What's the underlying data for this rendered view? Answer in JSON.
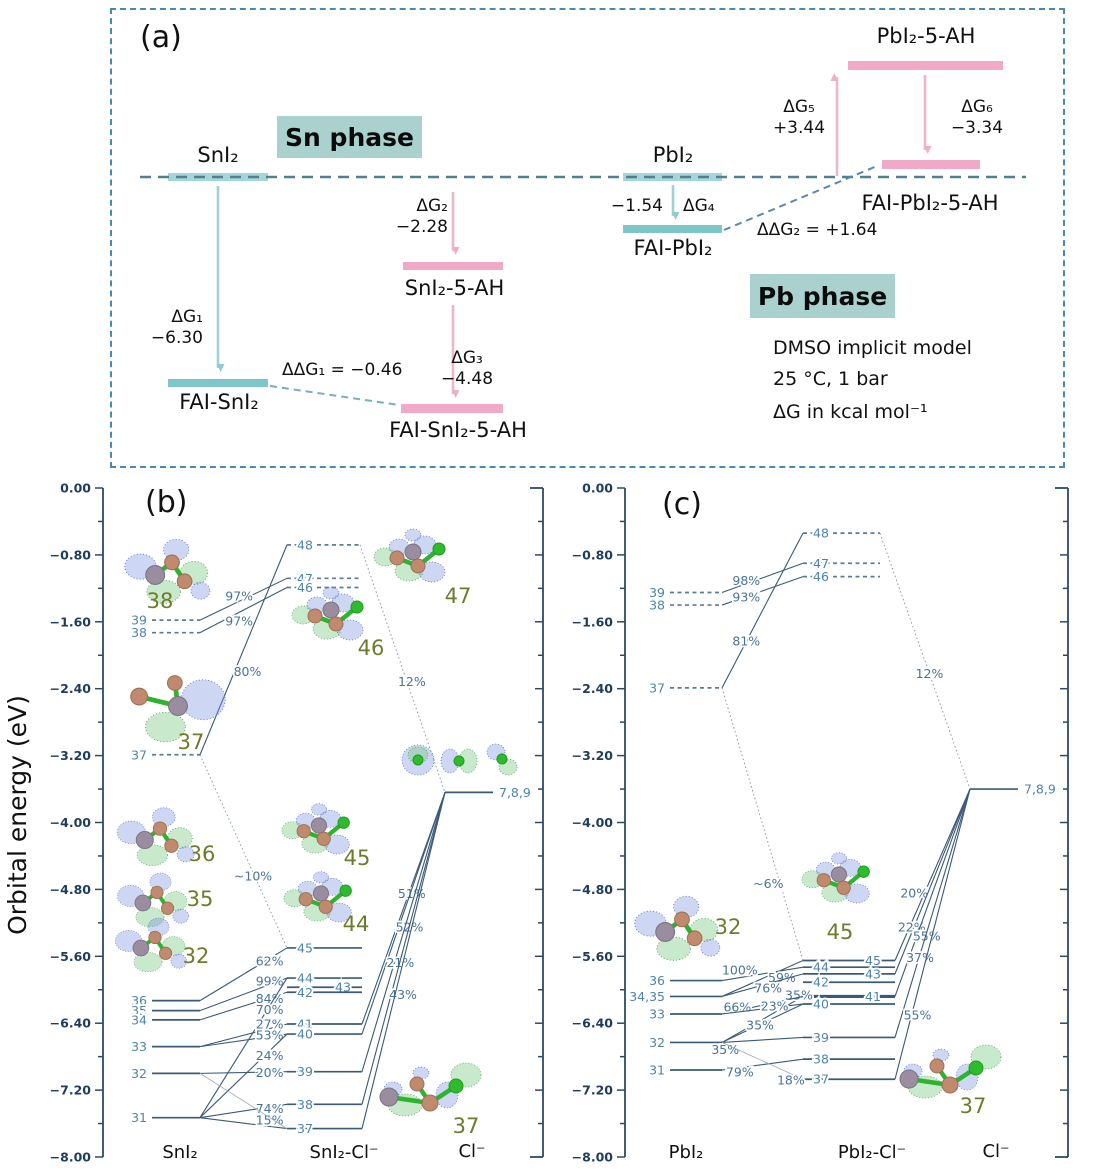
{
  "panel_a": {
    "tag": "(a)",
    "sn_phase": "Sn phase",
    "pb_phase": "Pb phase",
    "species": {
      "sni2": "SnI₂",
      "fai_sni2": "FAI-SnI₂",
      "sni2_5ah": "SnI₂-5-AH",
      "fai_sni2_5ah": "FAI-SnI₂-5-AH",
      "pbi2": "PbI₂",
      "fai_pbi2": "FAI-PbI₂",
      "pbi2_5ah": "PbI₂-5-AH",
      "fai_pbi2_5ah": "FAI-PbI₂-5-AH"
    },
    "steps": {
      "dg1": {
        "label": "ΔG₁",
        "value": "−6.30"
      },
      "dg2": {
        "label": "ΔG₂",
        "value": "−2.28"
      },
      "dg3": {
        "label": "ΔG₃",
        "value": "−4.48"
      },
      "dg4": {
        "label": "ΔG₄",
        "value": "−1.54"
      },
      "dg5": {
        "label": "ΔG₅",
        "value": "+3.44"
      },
      "dg6": {
        "label": "ΔG₆",
        "value": "−3.34"
      },
      "ddg1": "ΔΔG₁ = −0.46",
      "ddg2": "ΔΔG₂ = +1.64"
    },
    "conditions": [
      "DMSO implicit model",
      "25 °C, 1 bar",
      "ΔG in kcal mol⁻¹"
    ]
  },
  "chart_data": [
    {
      "type": "energy-level-diagram",
      "panel": "(b)",
      "ylabel": "Orbital energy (eV)",
      "ylim": [
        -8,
        0
      ],
      "yticks": [
        "0.00",
        "−0.80",
        "−1.60",
        "−2.40",
        "−3.20",
        "−4.00",
        "−4.80",
        "−5.60",
        "−6.40",
        "−7.20",
        "−8.00"
      ],
      "columns": [
        {
          "id": "SnI2",
          "label": "SnI₂",
          "levels": [
            {
              "n": "39",
              "e": -1.58,
              "dashed": true
            },
            {
              "n": "38",
              "e": -1.73,
              "dashed": true
            },
            {
              "n": "37",
              "e": -3.19,
              "dashed": true
            },
            {
              "n": "36",
              "e": -6.13
            },
            {
              "n": "35",
              "e": -6.25
            },
            {
              "n": "34",
              "e": -6.36
            },
            {
              "n": "33",
              "e": -6.68
            },
            {
              "n": "32",
              "e": -7.0
            },
            {
              "n": "31",
              "e": -7.53
            }
          ]
        },
        {
          "id": "SnI2Cl",
          "label": "SnI₂-Cl⁻",
          "levels": [
            {
              "n": "48",
              "e": -0.68,
              "dashed": true
            },
            {
              "n": "47",
              "e": -1.08,
              "dashed": true
            },
            {
              "n": "46",
              "e": -1.19,
              "dashed": true
            },
            {
              "n": "45",
              "e": -5.5
            },
            {
              "n": "44",
              "e": -5.86
            },
            {
              "n": "43",
              "e": -5.97,
              "ldx": 38
            },
            {
              "n": "42",
              "e": -6.03
            },
            {
              "n": "41",
              "e": -6.41
            },
            {
              "n": "40",
              "e": -6.53
            },
            {
              "n": "39",
              "e": -6.98
            },
            {
              "n": "38",
              "e": -7.37
            },
            {
              "n": "37",
              "e": -7.66
            }
          ]
        },
        {
          "id": "Cl",
          "label": "Cl⁻",
          "levels": [
            {
              "n": "7,8,9",
              "e": -3.64
            }
          ]
        }
      ],
      "connections": [
        {
          "from": "SnI2.39",
          "to": "SnI2Cl.47",
          "pct": "97%",
          "t": 0.45,
          "dy": -5
        },
        {
          "from": "SnI2.38",
          "to": "SnI2Cl.46",
          "pct": "97%",
          "t": 0.45,
          "dy": 9
        },
        {
          "from": "SnI2.37",
          "to": "SnI2Cl.48",
          "pct": "80%",
          "t": 0.5,
          "dy": 22,
          "dx": 4
        },
        {
          "from": "SnI2.37",
          "to": "SnI2Cl.45",
          "pct": "~10%",
          "t": 0.61,
          "dy": 4,
          "style": "dotted"
        },
        {
          "from": "SnI2Cl.48",
          "to": "Cl.7,8,9",
          "pct": "12%",
          "t": 0.61,
          "dy": -14,
          "style": "dotted"
        },
        {
          "from": "SnI2.36",
          "to": "SnI2Cl.45",
          "pct": "62%",
          "t": 0.8,
          "dy": 3
        },
        {
          "from": "SnI2.35",
          "to": "SnI2Cl.44",
          "pct": "99%",
          "t": 0.8,
          "dy": -3
        },
        {
          "from": "SnI2.34",
          "to": "SnI2Cl.42",
          "pct": "84%",
          "t": 0.8,
          "dy": 1
        },
        {
          "from": "SnI2.31",
          "to": "SnI2Cl.44",
          "pct": "70%",
          "t": 0.8,
          "dy": 4
        },
        {
          "from": "SnI2.33",
          "to": "SnI2Cl.41",
          "pct": "27%",
          "t": 0.8,
          "dy": -4
        },
        {
          "from": "SnI2.33",
          "to": "SnI2Cl.40",
          "pct": "53%",
          "t": 0.8,
          "dy": -1
        },
        {
          "from": "SnI2.31",
          "to": "SnI2Cl.40",
          "pct": "24%",
          "t": 0.8,
          "dy": 5
        },
        {
          "from": "SnI2.32",
          "to": "SnI2Cl.39",
          "pct": "20%",
          "t": 0.8,
          "dy": 1
        },
        {
          "from": "SnI2.31",
          "to": "SnI2Cl.38",
          "pct": "74%",
          "t": 0.8,
          "dy": 2
        },
        {
          "from": "SnI2.31",
          "to": "SnI2Cl.37",
          "pct": "15%",
          "t": 0.8,
          "dy": -6
        },
        {
          "from": "SnI2.32",
          "to": "SnI2Cl.37",
          "pct": "",
          "style": "faint"
        },
        {
          "from": "Cl.7,8,9",
          "to": "SnI2Cl.41",
          "pct": "51%",
          "t": 0.4,
          "dy": 9
        },
        {
          "from": "Cl.7,8,9",
          "to": "SnI2Cl.40",
          "pct": "52%",
          "t": 0.56,
          "dx": 11
        },
        {
          "from": "Cl.7,8,9",
          "to": "SnI2Cl.39",
          "pct": "21%",
          "t": 0.61,
          "dx": 6
        },
        {
          "from": "Cl.7,8,9",
          "to": "SnI2Cl.38",
          "pct": "43%",
          "t": 0.65,
          "dx": 12
        },
        {
          "from": "Cl.7,8,9",
          "to": "SnI2Cl.37",
          "pct": ""
        }
      ],
      "orbital_images": [
        {
          "id": "b38",
          "label": "38"
        },
        {
          "id": "b37",
          "label": "37"
        },
        {
          "id": "b36",
          "label": "36"
        },
        {
          "id": "b35",
          "label": "35"
        },
        {
          "id": "b32",
          "label": "32"
        },
        {
          "id": "b46",
          "label": "46"
        },
        {
          "id": "b47",
          "label": "47"
        },
        {
          "id": "b45",
          "label": "45"
        },
        {
          "id": "b44",
          "label": "44"
        },
        {
          "id": "bclrow",
          "label": ""
        },
        {
          "id": "b37c",
          "label": "37"
        }
      ]
    },
    {
      "type": "energy-level-diagram",
      "panel": "(c)",
      "ylabel": "",
      "ylim": [
        -8,
        0
      ],
      "yticks": [
        "0.00",
        "−0.80",
        "−1.60",
        "−2.40",
        "−3.20",
        "−4.00",
        "−4.80",
        "−5.60",
        "−6.40",
        "−7.20",
        "−8.00"
      ],
      "columns": [
        {
          "id": "PbI2",
          "label": "PbI₂",
          "levels": [
            {
              "n": "39",
              "e": -1.25,
              "dashed": true
            },
            {
              "n": "38",
              "e": -1.4,
              "dashed": true
            },
            {
              "n": "37",
              "e": -2.39,
              "dashed": true
            },
            {
              "n": "36",
              "e": -5.89
            },
            {
              "n": "34,35",
              "e": -6.08
            },
            {
              "n": "33",
              "e": -6.29
            },
            {
              "n": "32",
              "e": -6.63
            },
            {
              "n": "31",
              "e": -6.96
            }
          ]
        },
        {
          "id": "PbI2Cl",
          "label": "PbI₂-Cl⁻",
          "levels": [
            {
              "n": "48",
              "e": -0.54,
              "dashed": true
            },
            {
              "n": "47",
              "e": -0.9,
              "dashed": true
            },
            {
              "n": "46",
              "e": -1.06,
              "dashed": true
            },
            {
              "n": "45",
              "e": -5.65,
              "ldx": 52
            },
            {
              "n": "44",
              "e": -5.73
            },
            {
              "n": "43",
              "e": -5.81,
              "ldx": 52
            },
            {
              "n": "42",
              "e": -5.91
            },
            {
              "n": "41",
              "e": -6.08,
              "ldx": 52,
              "bold": true
            },
            {
              "n": "40",
              "e": -6.17
            },
            {
              "n": "39",
              "e": -6.57
            },
            {
              "n": "38",
              "e": -6.83
            },
            {
              "n": "37",
              "e": -7.07
            }
          ]
        },
        {
          "id": "Cl",
          "label": "Cl⁻",
          "levels": [
            {
              "n": "7,8,9",
              "e": -3.6
            }
          ]
        }
      ],
      "connections": [
        {
          "from": "PbI2.39",
          "to": "PbI2Cl.47",
          "pct": "98%",
          "t": 0.3,
          "dy": -3
        },
        {
          "from": "PbI2.38",
          "to": "PbI2Cl.46",
          "pct": "93%",
          "t": 0.3,
          "dy": 1
        },
        {
          "from": "PbI2.37",
          "to": "PbI2Cl.48",
          "pct": "81%",
          "t": 0.3,
          "dy": 0
        },
        {
          "from": "PbI2.37",
          "to": "PbI2Cl.45",
          "pct": "~6%",
          "t": 0.72,
          "dx": -12,
          "style": "dotted"
        },
        {
          "from": "PbI2Cl.48",
          "to": "Cl.7,8,9",
          "pct": "12%",
          "t": 0.55,
          "style": "dotted"
        },
        {
          "from": "PbI2.36",
          "to": "PbI2Cl.44",
          "pct": "100%",
          "t": 0.22,
          "dy": -7
        },
        {
          "from": "PbI2.34,35",
          "to": "PbI2Cl.45",
          "pct": "59%",
          "t": 0.74,
          "dy": 8
        },
        {
          "from": "PbI2.34,35",
          "to": "PbI2Cl.43",
          "pct": "76%",
          "t": 0.57,
          "dy": 5
        },
        {
          "from": "PbI2.32",
          "to": "PbI2Cl.41",
          "pct": "35%",
          "t": 0.95,
          "dy": -3
        },
        {
          "from": "PbI2.33",
          "to": "PbI2Cl.41",
          "pct": "66%",
          "t": 0.19,
          "dy": -3
        },
        {
          "from": "PbI2.33",
          "to": "PbI2Cl.40",
          "pct": "23%",
          "t": 0.65,
          "dy": -1
        },
        {
          "from": "PbI2.32",
          "to": "PbI2Cl.40",
          "pct": "35%",
          "t": 0.47,
          "dy": 1
        },
        {
          "from": "PbI2.32",
          "to": "PbI2Cl.39",
          "pct": "35%",
          "t": 0.04,
          "dy": 8
        },
        {
          "from": "PbI2.31",
          "to": "PbI2Cl.38",
          "pct": "79%",
          "t": 0.22,
          "dy": 5
        },
        {
          "from": "PbI2.32",
          "to": "PbI2Cl.37",
          "pct": "18%",
          "t": 0.85,
          "dy": 7,
          "style": "faint"
        },
        {
          "from": "Cl.7,8,9",
          "to": "PbI2Cl.45",
          "pct": "20%",
          "t": 0.61,
          "dx": -10
        },
        {
          "from": "Cl.7,8,9",
          "to": "PbI2Cl.43",
          "pct": "22%",
          "t": 0.75,
          "dx": -2
        },
        {
          "from": "Cl.7,8,9",
          "to": "PbI2Cl.41",
          "pct": "55%",
          "t": 0.71,
          "dx": 10
        },
        {
          "from": "Cl.7,8,9",
          "to": "PbI2Cl.39",
          "pct": "37%",
          "t": 0.68,
          "dx": 1
        },
        {
          "from": "Cl.7,8,9",
          "to": "PbI2Cl.37",
          "pct": "55%",
          "t": 0.78,
          "dx": 6
        }
      ],
      "orbital_images": [
        {
          "id": "c32",
          "label": "32"
        },
        {
          "id": "c45",
          "label": "45"
        },
        {
          "id": "c37c",
          "label": "37"
        }
      ]
    }
  ]
}
